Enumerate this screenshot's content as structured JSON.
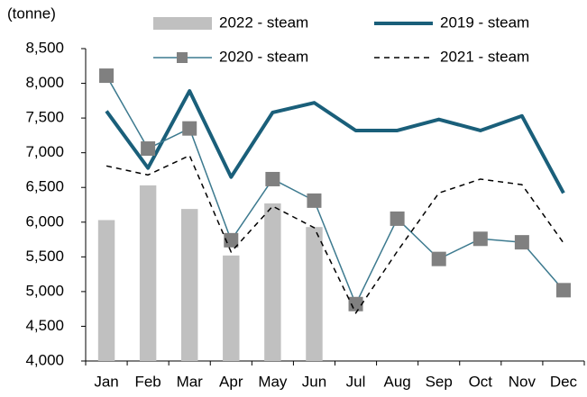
{
  "chart_data": {
    "type": "combo",
    "y_label": "(tonne)",
    "categories": [
      "Jan",
      "Feb",
      "Mar",
      "Apr",
      "May",
      "Jun",
      "Jul",
      "Aug",
      "Sep",
      "Oct",
      "Nov",
      "Dec"
    ],
    "series": [
      {
        "name": "2022 - steam",
        "type": "bar",
        "color": "#c0c0c0",
        "values": [
          6030,
          6530,
          6190,
          5520,
          6270,
          5930,
          null,
          null,
          null,
          null,
          null,
          null
        ]
      },
      {
        "name": "2019 - steam",
        "type": "line",
        "color": "#1a5f7a",
        "width": 4,
        "values": [
          7600,
          6780,
          7890,
          6650,
          7580,
          7720,
          7320,
          7320,
          7480,
          7320,
          7530,
          6420
        ]
      },
      {
        "name": "2020 - steam",
        "type": "line",
        "color": "#3d7a8f",
        "width": 1.5,
        "marker": "square",
        "marker_color": "#808080",
        "values": [
          8110,
          7060,
          7350,
          5740,
          6620,
          6310,
          4820,
          6050,
          5470,
          5760,
          5710,
          5020
        ]
      },
      {
        "name": "2021 - steam",
        "type": "line",
        "color": "#000000",
        "width": 1.5,
        "dashed": true,
        "values": [
          6810,
          6680,
          6960,
          5570,
          6230,
          5920,
          4690,
          5580,
          6420,
          6620,
          6540,
          5700
        ]
      }
    ],
    "ylim": [
      4000,
      8500
    ],
    "yticks": [
      {
        "value": 4000,
        "label": "4,000"
      },
      {
        "value": 4500,
        "label": "4,500"
      },
      {
        "value": 5000,
        "label": "5,000"
      },
      {
        "value": 5500,
        "label": "5,500"
      },
      {
        "value": 6000,
        "label": "6,000"
      },
      {
        "value": 6500,
        "label": "6,500"
      },
      {
        "value": 7000,
        "label": "7,000"
      },
      {
        "value": 7500,
        "label": "7,500"
      },
      {
        "value": 8000,
        "label": "8,000"
      },
      {
        "value": 8500,
        "label": "8,500"
      }
    ],
    "grid": false
  }
}
